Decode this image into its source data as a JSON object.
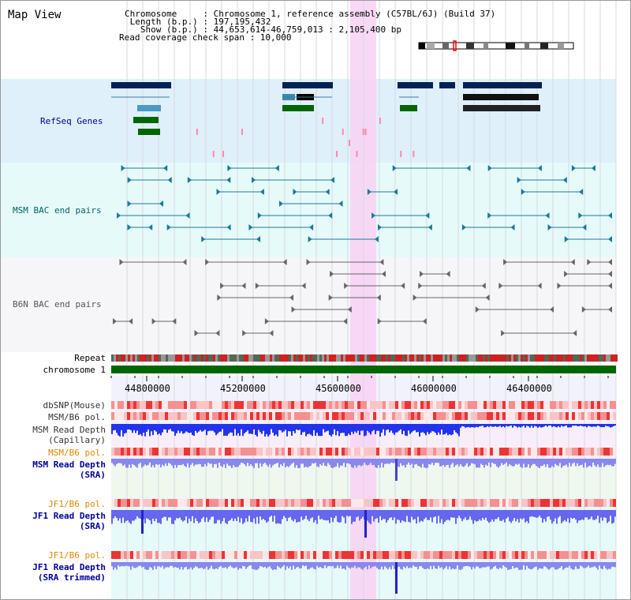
{
  "title": "Map View",
  "header": {
    "lines": [
      "Chromosome     : Chromosome 1, reference assembly (C57BL/6J) (Build 37)",
      " Length (b.p.) : 197,195,432",
      "   Show (b.p.) : 44,653,614-46,759,013 : 2,105,400 bp",
      "Read coverage check span : 10,000"
    ]
  },
  "tracks": {
    "refseq": "RefSeq Genes",
    "msm_bac": "MSM BAC end pairs",
    "b6n_bac": "B6N BAC end pairs",
    "repeat": "Repeat",
    "chromosome": "chromosome 1",
    "dbsnp": "dbSNP(Mouse)",
    "msm_b6_pol": "MSM/B6 pol.",
    "msm_depth_cap_1": "MSM Read Depth",
    "msm_depth_cap_2": "(Capillary)",
    "msm_b6_pol_sra": "MSM/B6 pol.",
    "msm_depth_sra_1": "MSM Read Depth",
    "msm_depth_sra_2": "(SRA)",
    "jf1_b6_pol": "JF1/B6 pol.",
    "jf1_depth_sra_1": "JF1 Read Depth",
    "jf1_depth_sra_2": "(SRA)",
    "jf1_b6_pol_trim": "JF1/B6 pol.",
    "jf1_depth_trim_1": "JF1 Read Depth",
    "jf1_depth_trim_2": "(SRA trimmed)"
  },
  "axis": {
    "ticks": [
      "44800000",
      "45200000",
      "45600000",
      "46000000",
      "46400000"
    ]
  },
  "colors": {
    "refseq_bg": "#dff0fa",
    "msm_bg": "#e6fafa",
    "b6n_bg": "#f4f4f4",
    "highlight": "#f7d4f4",
    "chrom_green": "#006600",
    "label_blue": "#000099",
    "label_teal": "#006666",
    "label_orange": "#dd8800",
    "depth_blue": "#3333ff"
  }
}
